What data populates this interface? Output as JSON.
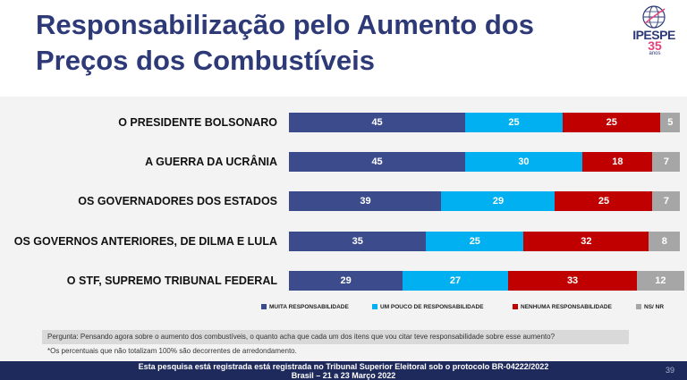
{
  "title": {
    "line1": "Responsabilização pelo Aumento dos",
    "line2": "Preços dos Combustíveis"
  },
  "logo": {
    "name": "IPESPE",
    "years": "35",
    "suffix": "anos"
  },
  "colors": {
    "muita": "#3b4b8c",
    "pouco": "#00b0f0",
    "nenhuma": "#c00000",
    "nsnr": "#a6a6a6",
    "title": "#2e3a78",
    "footer": "#1f2a5c"
  },
  "chart_data": {
    "type": "bar",
    "orientation": "horizontal",
    "stacked": true,
    "categories": [
      "O PRESIDENTE BOLSONARO",
      "A GUERRA DA UCRÂNIA",
      "OS GOVERNADORES DOS ESTADOS",
      "OS GOVERNOS ANTERIORES, DE DILMA E LULA",
      "O STF, SUPREMO TRIBUNAL FEDERAL"
    ],
    "series": [
      {
        "name": "MUITA RESPONSABILIDADE",
        "values": [
          45,
          45,
          39,
          35,
          29
        ]
      },
      {
        "name": "UM POUCO DE RESPONSABILIDADE",
        "values": [
          25,
          30,
          29,
          25,
          27
        ]
      },
      {
        "name": "NENHUMA RESPONSABILIDADE",
        "values": [
          25,
          18,
          25,
          32,
          33
        ]
      },
      {
        "name": "NS/ NR",
        "values": [
          5,
          7,
          7,
          8,
          12
        ]
      }
    ],
    "xlim": [
      0,
      100
    ],
    "legend": "bottom",
    "grid": false
  },
  "question": "Pergunta:  Pensando agora sobre o aumento dos combustíveis, o quanto acha que cada um dos itens que vou citar teve responsabilidade sobre esse aumento?",
  "note": "*Os percentuais que não totalizam 100% são decorrentes de arredondamento.",
  "footer": {
    "line1": "Esta pesquisa está registrada está registrada no Tribunal Superior Eleitoral sob o protocolo BR-04222/2022",
    "line2": "Brasil – 21 a 23 Março 2022",
    "page": "39"
  }
}
